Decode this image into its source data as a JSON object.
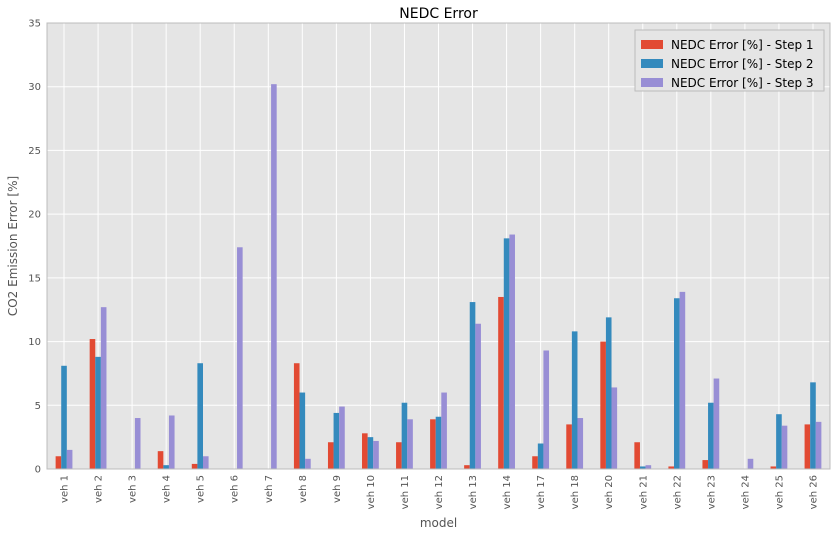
{
  "chart_data": {
    "type": "bar",
    "title": "NEDC Error",
    "xlabel": "model",
    "ylabel": "CO2 Emission Error [%]",
    "ylim": [
      0,
      35
    ],
    "yticks": [
      0,
      5,
      10,
      15,
      20,
      25,
      30,
      35
    ],
    "grid": true,
    "legend_position": "top-right",
    "categories": [
      "veh 1",
      "veh 2",
      "veh 3",
      "veh 4",
      "veh 5",
      "veh 6",
      "veh 7",
      "veh 8",
      "veh 9",
      "veh 10",
      "veh 11",
      "veh 12",
      "veh 13",
      "veh 14",
      "veh 17",
      "veh 18",
      "veh 20",
      "veh 21",
      "veh 22",
      "veh 23",
      "veh 24",
      "veh 25",
      "veh 26"
    ],
    "series": [
      {
        "name": "NEDC Error [%] - Step 1",
        "color": "#E24A33",
        "values": [
          1.0,
          10.2,
          0,
          1.4,
          0.4,
          0,
          0,
          8.3,
          2.1,
          2.8,
          2.1,
          3.9,
          0.3,
          13.5,
          1.0,
          3.5,
          10.0,
          2.1,
          0.2,
          0.7,
          0,
          0.2,
          3.5
        ]
      },
      {
        "name": "NEDC Error [%] - Step 2",
        "color": "#348ABD",
        "values": [
          8.1,
          8.8,
          0,
          0.3,
          8.3,
          0,
          0,
          6.0,
          4.4,
          2.5,
          5.2,
          4.1,
          13.1,
          18.1,
          2.0,
          10.8,
          11.9,
          0.2,
          13.4,
          5.2,
          0,
          4.3,
          6.8
        ]
      },
      {
        "name": "NEDC Error [%] - Step 3",
        "color": "#988ED5",
        "values": [
          1.5,
          12.7,
          4.0,
          4.2,
          1.0,
          17.4,
          30.2,
          0.8,
          4.9,
          2.2,
          3.9,
          6.0,
          11.4,
          18.4,
          9.3,
          4.0,
          6.4,
          0.3,
          13.9,
          7.1,
          0.8,
          3.4,
          3.7
        ]
      }
    ]
  }
}
